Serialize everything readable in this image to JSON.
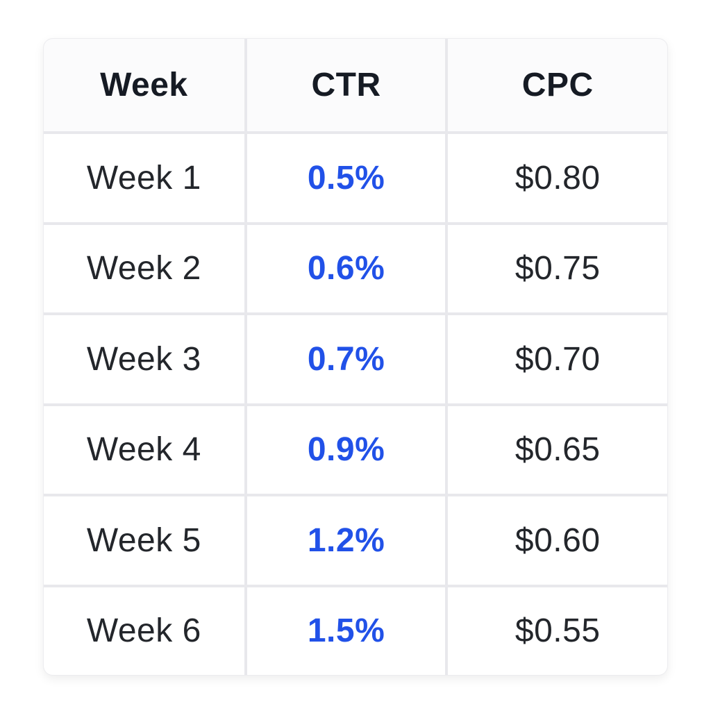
{
  "page": {
    "background": "#ffffff"
  },
  "table": {
    "columns": [
      {
        "key": "week",
        "label": "Week"
      },
      {
        "key": "ctr",
        "label": "CTR"
      },
      {
        "key": "cpc",
        "label": "CPC"
      }
    ],
    "rows": [
      {
        "week": "Week 1",
        "ctr": "0.5%",
        "cpc": "$0.80"
      },
      {
        "week": "Week 2",
        "ctr": "0.6%",
        "cpc": "$0.75"
      },
      {
        "week": "Week 3",
        "ctr": "0.7%",
        "cpc": "$0.70"
      },
      {
        "week": "Week 4",
        "ctr": "0.9%",
        "cpc": "$0.65"
      },
      {
        "week": "Week 5",
        "ctr": "1.2%",
        "cpc": "$0.60"
      },
      {
        "week": "Week 6",
        "ctr": "1.5%",
        "cpc": "$0.55"
      }
    ],
    "colors": {
      "accent_ctr_text": "#2151e8",
      "header_text": "#161b24",
      "body_text": "#23262b",
      "grid_line": "#e8e8ec",
      "card_border": "#ececef",
      "cell_bg": "#ffffff",
      "header_bg": "#fbfbfc"
    }
  },
  "chart_data": {
    "type": "table",
    "title": "",
    "columns": [
      "Week",
      "CTR",
      "CPC"
    ],
    "rows": [
      [
        "Week 1",
        "0.5%",
        "$0.80"
      ],
      [
        "Week 2",
        "0.6%",
        "$0.75"
      ],
      [
        "Week 3",
        "0.7%",
        "$0.70"
      ],
      [
        "Week 4",
        "0.9%",
        "$0.65"
      ],
      [
        "Week 5",
        "1.2%",
        "$0.60"
      ],
      [
        "Week 6",
        "1.5%",
        "$0.55"
      ]
    ],
    "categories": [
      "Week 1",
      "Week 2",
      "Week 3",
      "Week 4",
      "Week 5",
      "Week 6"
    ],
    "series": [
      {
        "name": "CTR (%)",
        "values": [
          0.5,
          0.6,
          0.7,
          0.9,
          1.2,
          1.5
        ]
      },
      {
        "name": "CPC ($)",
        "values": [
          0.8,
          0.75,
          0.7,
          0.65,
          0.6,
          0.55
        ]
      }
    ],
    "legend_position": "none",
    "grid": true
  }
}
